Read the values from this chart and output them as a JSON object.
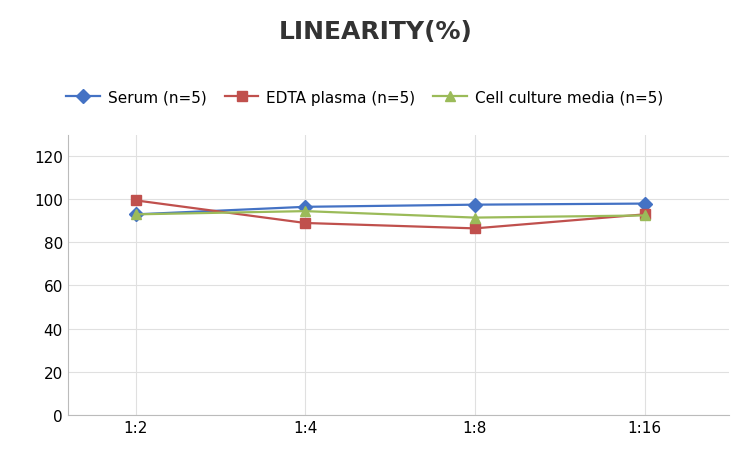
{
  "title": "LINEARITY(%)",
  "x_labels": [
    "1:2",
    "1:4",
    "1:8",
    "1:16"
  ],
  "x_positions": [
    0,
    1,
    2,
    3
  ],
  "series": [
    {
      "label": "Serum (n=5)",
      "values": [
        93.0,
        96.5,
        97.5,
        98.0
      ],
      "color": "#4472C4",
      "marker": "D",
      "markersize": 7,
      "linewidth": 1.6
    },
    {
      "label": "EDTA plasma (n=5)",
      "values": [
        99.5,
        89.0,
        86.5,
        93.0
      ],
      "color": "#C0504D",
      "marker": "s",
      "markersize": 7,
      "linewidth": 1.6
    },
    {
      "label": "Cell culture media (n=5)",
      "values": [
        93.0,
        94.5,
        91.5,
        92.5
      ],
      "color": "#9BBB59",
      "marker": "^",
      "markersize": 7,
      "linewidth": 1.6
    }
  ],
  "ylim": [
    0,
    130
  ],
  "yticks": [
    0,
    20,
    40,
    60,
    80,
    100,
    120
  ],
  "background_color": "#ffffff",
  "grid_color": "#e0e0e0",
  "title_fontsize": 18,
  "legend_fontsize": 11,
  "tick_fontsize": 11,
  "spine_color": "#bbbbbb"
}
